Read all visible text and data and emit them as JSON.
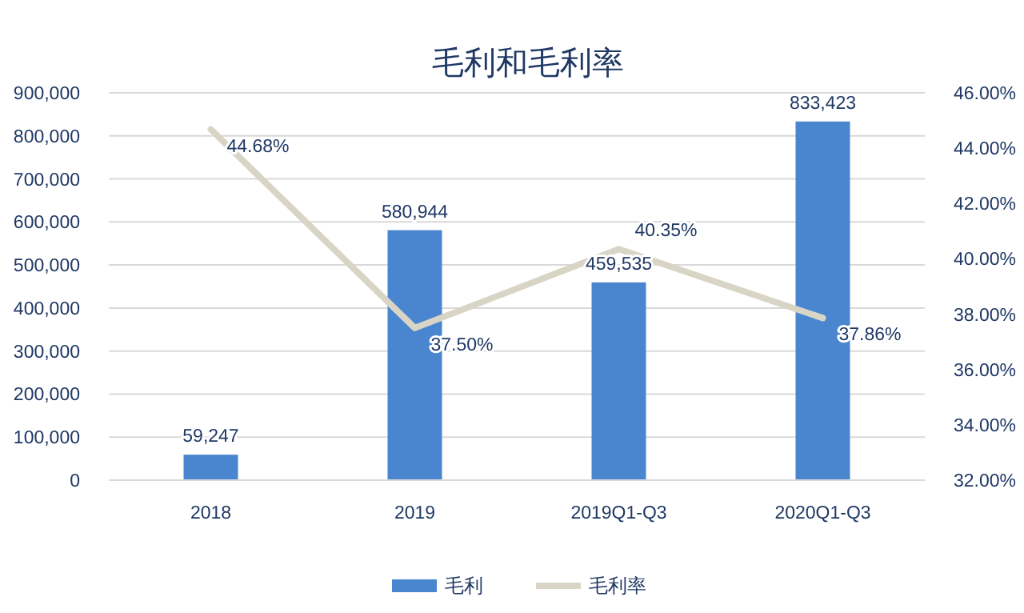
{
  "chart_data": {
    "type": "bar",
    "title": "毛利和毛利率",
    "categories": [
      "2018",
      "2019",
      "2019Q1-Q3",
      "2020Q1-Q3"
    ],
    "series": [
      {
        "name": "毛利",
        "color": "#4a86d0",
        "values": [
          59247,
          580944,
          459535,
          833423
        ],
        "value_labels": [
          "59,247",
          "580,944",
          "459,535",
          "833,423"
        ]
      },
      {
        "name": "毛利率",
        "type": "line",
        "axis": "y2",
        "color": "#d8d5c6",
        "values": [
          44.68,
          37.5,
          40.35,
          37.86
        ],
        "value_labels": [
          "44.68%",
          "37.50%",
          "40.35%",
          "37.86%"
        ]
      }
    ],
    "ylim": [
      0,
      900000
    ],
    "yticks": [
      0,
      {
        "value": 100000,
        "label": "100,000"
      },
      {
        "value": 200000,
        "label": "200,000"
      },
      {
        "value": 300000,
        "label": "300,000"
      },
      {
        "value": 400000,
        "label": "400,000"
      },
      {
        "value": 500000,
        "label": "500,000"
      },
      {
        "value": 600000,
        "label": "600,000"
      },
      {
        "value": 700000,
        "label": "700,000"
      },
      {
        "value": 800000,
        "label": "800,000"
      },
      {
        "value": 900000,
        "label": "900,000"
      }
    ],
    "y2lim": [
      32,
      46
    ],
    "y2ticks": [
      {
        "value": 32,
        "label": "32.00%"
      },
      {
        "value": 34,
        "label": "34.00%"
      },
      {
        "value": 36,
        "label": "36.00%"
      },
      {
        "value": 38,
        "label": "38.00%"
      },
      {
        "value": 40,
        "label": "40.00%"
      },
      {
        "value": 42,
        "label": "42.00%"
      },
      {
        "value": 44,
        "label": "44.00%"
      },
      {
        "value": 46,
        "label": "46.00%"
      }
    ],
    "grid": "y",
    "legend": "bottom"
  }
}
